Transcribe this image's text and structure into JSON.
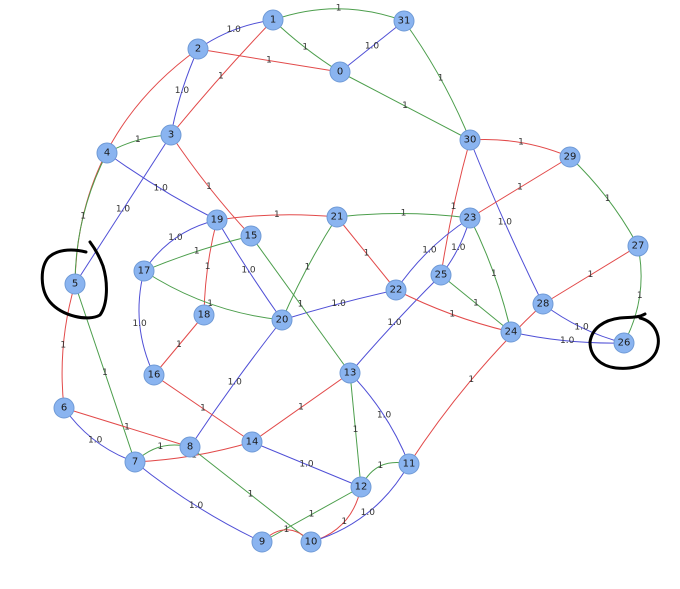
{
  "colors": {
    "blue": "#4f4fd6",
    "red": "#e24a4a",
    "green": "#4c9e4c",
    "node": "#8ab4f0"
  },
  "nodes": [
    "0",
    "1",
    "2",
    "3",
    "4",
    "5",
    "6",
    "7",
    "8",
    "9",
    "10",
    "11",
    "12",
    "13",
    "14",
    "15",
    "16",
    "17",
    "18",
    "19",
    "20",
    "21",
    "22",
    "23",
    "24",
    "25",
    "26",
    "27",
    "28",
    "29",
    "30",
    "31"
  ],
  "edges": [
    {
      "from": "1",
      "to": "2",
      "color": "blue",
      "label": "1.0"
    },
    {
      "from": "1",
      "to": "31",
      "color": "green",
      "label": "1"
    },
    {
      "from": "1",
      "to": "0",
      "color": "green",
      "label": "1"
    },
    {
      "from": "1",
      "to": "3",
      "color": "red",
      "label": "1"
    },
    {
      "from": "2",
      "to": "0",
      "color": "red",
      "label": "1"
    },
    {
      "from": "2",
      "to": "3",
      "color": "blue",
      "label": "1.0"
    },
    {
      "from": "2",
      "to": "5",
      "color": "red",
      "label": "1"
    },
    {
      "from": "31",
      "to": "0",
      "color": "blue",
      "label": "1.0"
    },
    {
      "from": "31",
      "to": "30",
      "color": "green",
      "label": "1"
    },
    {
      "from": "0",
      "to": "30",
      "color": "green",
      "label": "1"
    },
    {
      "from": "4",
      "to": "3",
      "color": "green",
      "label": "1"
    },
    {
      "from": "4",
      "to": "19",
      "color": "blue",
      "label": "1.0"
    },
    {
      "from": "4",
      "to": "5",
      "color": "green",
      "label": "1"
    },
    {
      "from": "3",
      "to": "5",
      "color": "blue",
      "label": "1.0"
    },
    {
      "from": "3",
      "to": "15",
      "color": "red",
      "label": "1"
    },
    {
      "from": "30",
      "to": "29",
      "color": "red",
      "label": "1"
    },
    {
      "from": "30",
      "to": "28",
      "color": "blue",
      "label": "1.0"
    },
    {
      "from": "30",
      "to": "25",
      "color": "red",
      "label": "1"
    },
    {
      "from": "29",
      "to": "23",
      "color": "red",
      "label": "1"
    },
    {
      "from": "29",
      "to": "27",
      "color": "green",
      "label": "1"
    },
    {
      "from": "27",
      "to": "28",
      "color": "red",
      "label": "1"
    },
    {
      "from": "27",
      "to": "26",
      "color": "green",
      "label": "1"
    },
    {
      "from": "28",
      "to": "26",
      "color": "blue",
      "label": "1.0"
    },
    {
      "from": "28",
      "to": "11",
      "color": "red",
      "label": "1"
    },
    {
      "from": "24",
      "to": "26",
      "color": "blue",
      "label": "1.0"
    },
    {
      "from": "23",
      "to": "21",
      "color": "green",
      "label": "1"
    },
    {
      "from": "23",
      "to": "22",
      "color": "blue",
      "label": "1.0"
    },
    {
      "from": "23",
      "to": "25",
      "color": "blue",
      "label": "1.0"
    },
    {
      "from": "23",
      "to": "24",
      "color": "green",
      "label": "1"
    },
    {
      "from": "25",
      "to": "24",
      "color": "green",
      "label": "1"
    },
    {
      "from": "25",
      "to": "13",
      "color": "blue",
      "label": "1.0"
    },
    {
      "from": "22",
      "to": "20",
      "color": "blue",
      "label": "1.0"
    },
    {
      "from": "22",
      "to": "24",
      "color": "red",
      "label": "1"
    },
    {
      "from": "21",
      "to": "19",
      "color": "red",
      "label": "1"
    },
    {
      "from": "21",
      "to": "22",
      "color": "red",
      "label": "1"
    },
    {
      "from": "21",
      "to": "20",
      "color": "green",
      "label": "1"
    },
    {
      "from": "19",
      "to": "17",
      "color": "blue",
      "label": "1.0"
    },
    {
      "from": "19",
      "to": "20",
      "color": "blue",
      "label": "1.0"
    },
    {
      "from": "19",
      "to": "18",
      "color": "red",
      "label": "1"
    },
    {
      "from": "15",
      "to": "17",
      "color": "green",
      "label": "1"
    },
    {
      "from": "15",
      "to": "13",
      "color": "green",
      "label": "1"
    },
    {
      "from": "17",
      "to": "20",
      "color": "green",
      "label": "1"
    },
    {
      "from": "17",
      "to": "16",
      "color": "blue",
      "label": "1.0"
    },
    {
      "from": "18",
      "to": "16",
      "color": "red",
      "label": "1"
    },
    {
      "from": "20",
      "to": "8",
      "color": "blue",
      "label": "1.0"
    },
    {
      "from": "16",
      "to": "14",
      "color": "red",
      "label": "1"
    },
    {
      "from": "13",
      "to": "14",
      "color": "red",
      "label": "1"
    },
    {
      "from": "13",
      "to": "11",
      "color": "blue",
      "label": "1.0"
    },
    {
      "from": "13",
      "to": "12",
      "color": "green",
      "label": "1"
    },
    {
      "from": "5",
      "to": "6",
      "color": "red",
      "label": "1"
    },
    {
      "from": "5",
      "to": "7",
      "color": "green",
      "label": "1"
    },
    {
      "from": "6",
      "to": "8",
      "color": "red",
      "label": "1"
    },
    {
      "from": "6",
      "to": "7",
      "color": "blue",
      "label": "1.0"
    },
    {
      "from": "7",
      "to": "8",
      "color": "green",
      "label": "1"
    },
    {
      "from": "7",
      "to": "14",
      "color": "red",
      "label": "1"
    },
    {
      "from": "7",
      "to": "9",
      "color": "blue",
      "label": "1.0"
    },
    {
      "from": "8",
      "to": "10",
      "color": "green",
      "label": "1"
    },
    {
      "from": "14",
      "to": "12",
      "color": "blue",
      "label": "1.0"
    },
    {
      "from": "12",
      "to": "11",
      "color": "green",
      "label": "1"
    },
    {
      "from": "12",
      "to": "9",
      "color": "green",
      "label": "1"
    },
    {
      "from": "12",
      "to": "10",
      "color": "red",
      "label": "1"
    },
    {
      "from": "11",
      "to": "10",
      "color": "blue",
      "label": "1.0"
    },
    {
      "from": "9",
      "to": "10",
      "color": "red",
      "label": "1"
    }
  ]
}
